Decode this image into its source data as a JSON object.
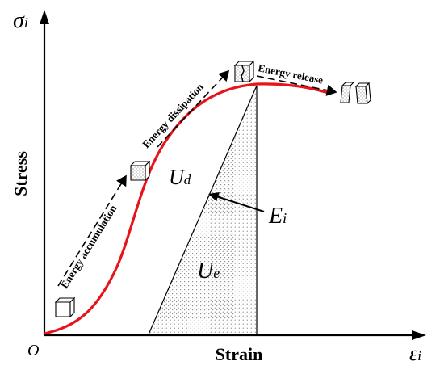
{
  "axes": {
    "y_symbol": "σ",
    "y_subscript": "i",
    "x_symbol": "ε",
    "x_subscript": "i",
    "origin": "O",
    "y_title": "Stress",
    "x_title": "Strain"
  },
  "stages": {
    "accumulation": "Energy accumulation",
    "dissipation": "Energy dissipation",
    "release": "Energy release"
  },
  "regions": {
    "dissipated_symbol": "U",
    "dissipated_subscript": "d",
    "elastic_symbol": "U",
    "elastic_subscript": "e",
    "modulus_symbol": "E",
    "modulus_subscript": "i"
  },
  "colors": {
    "curve": "#e8141c",
    "ink": "#000000",
    "hatch_dot": "#555555"
  }
}
